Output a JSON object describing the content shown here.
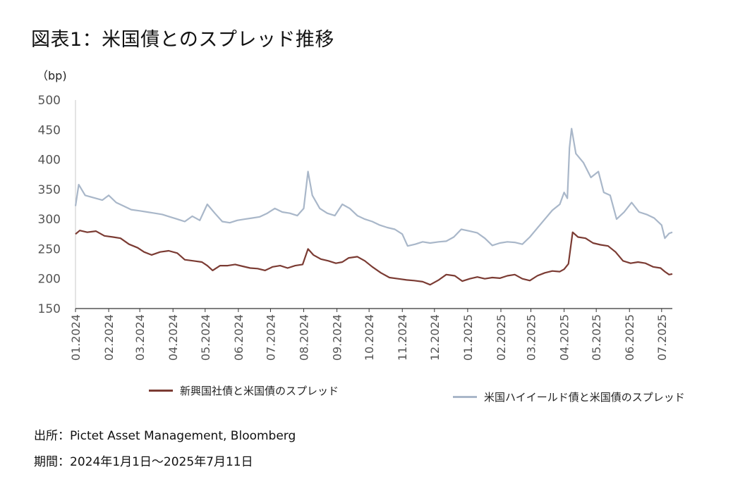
{
  "title": "図表1：米国債とのスプレッド推移",
  "unit_label": "（bp)",
  "footer": {
    "source": "出所：Pictet Asset Management, Bloomberg",
    "period": "期間：2024年1月1日～2025年7月11日"
  },
  "colors": {
    "em": "#7b3b33",
    "hy": "#a9b7c9",
    "axis": "#555555"
  },
  "chart_data": {
    "type": "line",
    "ylabel": "（bp)",
    "ylim": [
      150,
      500
    ],
    "yticks": [
      150,
      200,
      250,
      300,
      350,
      400,
      450,
      500
    ],
    "grid": false,
    "legend_position": "bottom",
    "x_start": "2024-01-01",
    "x_end": "2025-07-11",
    "xtick_labels": [
      {
        "date": "2024-01-01",
        "label": "01.2024"
      },
      {
        "date": "2024-02-01",
        "label": "02.2024"
      },
      {
        "date": "2024-03-01",
        "label": "03.2024"
      },
      {
        "date": "2024-04-01",
        "label": "04.2024"
      },
      {
        "date": "2024-05-01",
        "label": "05.2024"
      },
      {
        "date": "2024-06-01",
        "label": "06.2024"
      },
      {
        "date": "2024-07-01",
        "label": "07.2024"
      },
      {
        "date": "2024-08-01",
        "label": "08.2024"
      },
      {
        "date": "2024-09-01",
        "label": "09.2024"
      },
      {
        "date": "2024-10-01",
        "label": "10.2024"
      },
      {
        "date": "2024-11-01",
        "label": "11.2024"
      },
      {
        "date": "2024-12-01",
        "label": "12.2024"
      },
      {
        "date": "2025-01-01",
        "label": "01.2025"
      },
      {
        "date": "2025-02-01",
        "label": "02.2025"
      },
      {
        "date": "2025-03-01",
        "label": "03.2025"
      },
      {
        "date": "2025-04-01",
        "label": "04.2025"
      },
      {
        "date": "2025-05-01",
        "label": "05.2025"
      },
      {
        "date": "2025-06-01",
        "label": "06.2025"
      },
      {
        "date": "2025-07-01",
        "label": "07.2025"
      }
    ],
    "series": [
      {
        "name": "新興国社債と米国債のスプレッド",
        "color": "#7b3b33",
        "points": [
          [
            "2024-01-01",
            275
          ],
          [
            "2024-01-05",
            281
          ],
          [
            "2024-01-12",
            278
          ],
          [
            "2024-01-20",
            280
          ],
          [
            "2024-01-28",
            272
          ],
          [
            "2024-02-05",
            270
          ],
          [
            "2024-02-12",
            268
          ],
          [
            "2024-02-20",
            258
          ],
          [
            "2024-02-28",
            252
          ],
          [
            "2024-03-05",
            245
          ],
          [
            "2024-03-12",
            240
          ],
          [
            "2024-03-20",
            245
          ],
          [
            "2024-03-28",
            247
          ],
          [
            "2024-04-05",
            243
          ],
          [
            "2024-04-12",
            232
          ],
          [
            "2024-04-20",
            230
          ],
          [
            "2024-04-28",
            228
          ],
          [
            "2024-05-03",
            222
          ],
          [
            "2024-05-08",
            214
          ],
          [
            "2024-05-15",
            222
          ],
          [
            "2024-05-22",
            222
          ],
          [
            "2024-05-29",
            224
          ],
          [
            "2024-06-05",
            221
          ],
          [
            "2024-06-12",
            218
          ],
          [
            "2024-06-19",
            217
          ],
          [
            "2024-06-26",
            214
          ],
          [
            "2024-07-03",
            220
          ],
          [
            "2024-07-10",
            222
          ],
          [
            "2024-07-17",
            218
          ],
          [
            "2024-07-24",
            222
          ],
          [
            "2024-07-31",
            224
          ],
          [
            "2024-08-05",
            250
          ],
          [
            "2024-08-10",
            240
          ],
          [
            "2024-08-17",
            233
          ],
          [
            "2024-08-24",
            230
          ],
          [
            "2024-08-31",
            226
          ],
          [
            "2024-09-06",
            228
          ],
          [
            "2024-09-12",
            235
          ],
          [
            "2024-09-20",
            237
          ],
          [
            "2024-09-27",
            230
          ],
          [
            "2024-10-04",
            220
          ],
          [
            "2024-10-12",
            210
          ],
          [
            "2024-10-20",
            202
          ],
          [
            "2024-10-28",
            200
          ],
          [
            "2024-11-05",
            198
          ],
          [
            "2024-11-12",
            197
          ],
          [
            "2024-11-20",
            195
          ],
          [
            "2024-11-27",
            190
          ],
          [
            "2024-12-05",
            198
          ],
          [
            "2024-12-12",
            207
          ],
          [
            "2024-12-20",
            205
          ],
          [
            "2024-12-27",
            196
          ],
          [
            "2025-01-03",
            200
          ],
          [
            "2025-01-10",
            203
          ],
          [
            "2025-01-17",
            200
          ],
          [
            "2025-01-24",
            202
          ],
          [
            "2025-01-31",
            201
          ],
          [
            "2025-02-07",
            205
          ],
          [
            "2025-02-14",
            207
          ],
          [
            "2025-02-21",
            200
          ],
          [
            "2025-02-28",
            197
          ],
          [
            "2025-03-07",
            205
          ],
          [
            "2025-03-14",
            210
          ],
          [
            "2025-03-21",
            213
          ],
          [
            "2025-03-28",
            212
          ],
          [
            "2025-04-01",
            216
          ],
          [
            "2025-04-05",
            225
          ],
          [
            "2025-04-09",
            278
          ],
          [
            "2025-04-14",
            270
          ],
          [
            "2025-04-21",
            268
          ],
          [
            "2025-04-28",
            260
          ],
          [
            "2025-05-05",
            257
          ],
          [
            "2025-05-12",
            255
          ],
          [
            "2025-05-19",
            245
          ],
          [
            "2025-05-26",
            230
          ],
          [
            "2025-06-02",
            226
          ],
          [
            "2025-06-09",
            228
          ],
          [
            "2025-06-16",
            226
          ],
          [
            "2025-06-23",
            220
          ],
          [
            "2025-06-30",
            218
          ],
          [
            "2025-07-04",
            212
          ],
          [
            "2025-07-08",
            207
          ],
          [
            "2025-07-11",
            208
          ]
        ]
      },
      {
        "name": "米国ハイイールド債と米国債のスプレッド",
        "color": "#a9b7c9",
        "points": [
          [
            "2024-01-01",
            322
          ],
          [
            "2024-01-04",
            358
          ],
          [
            "2024-01-10",
            340
          ],
          [
            "2024-01-18",
            336
          ],
          [
            "2024-01-26",
            332
          ],
          [
            "2024-02-01",
            340
          ],
          [
            "2024-02-08",
            328
          ],
          [
            "2024-02-15",
            322
          ],
          [
            "2024-02-22",
            316
          ],
          [
            "2024-03-01",
            314
          ],
          [
            "2024-03-08",
            312
          ],
          [
            "2024-03-15",
            310
          ],
          [
            "2024-03-22",
            308
          ],
          [
            "2024-03-29",
            304
          ],
          [
            "2024-04-05",
            300
          ],
          [
            "2024-04-12",
            296
          ],
          [
            "2024-04-19",
            305
          ],
          [
            "2024-04-26",
            298
          ],
          [
            "2024-05-03",
            325
          ],
          [
            "2024-05-10",
            310
          ],
          [
            "2024-05-17",
            296
          ],
          [
            "2024-05-24",
            294
          ],
          [
            "2024-05-31",
            298
          ],
          [
            "2024-06-07",
            300
          ],
          [
            "2024-06-14",
            302
          ],
          [
            "2024-06-21",
            304
          ],
          [
            "2024-06-28",
            310
          ],
          [
            "2024-07-05",
            318
          ],
          [
            "2024-07-12",
            312
          ],
          [
            "2024-07-19",
            310
          ],
          [
            "2024-07-26",
            306
          ],
          [
            "2024-08-01",
            318
          ],
          [
            "2024-08-05",
            380
          ],
          [
            "2024-08-09",
            340
          ],
          [
            "2024-08-16",
            318
          ],
          [
            "2024-08-23",
            310
          ],
          [
            "2024-08-30",
            306
          ],
          [
            "2024-09-06",
            325
          ],
          [
            "2024-09-13",
            318
          ],
          [
            "2024-09-20",
            306
          ],
          [
            "2024-09-27",
            300
          ],
          [
            "2024-10-04",
            296
          ],
          [
            "2024-10-11",
            290
          ],
          [
            "2024-10-18",
            286
          ],
          [
            "2024-10-25",
            283
          ],
          [
            "2024-11-01",
            275
          ],
          [
            "2024-11-06",
            255
          ],
          [
            "2024-11-13",
            258
          ],
          [
            "2024-11-20",
            262
          ],
          [
            "2024-11-27",
            260
          ],
          [
            "2024-12-05",
            262
          ],
          [
            "2024-12-12",
            263
          ],
          [
            "2024-12-19",
            270
          ],
          [
            "2024-12-26",
            283
          ],
          [
            "2025-01-03",
            280
          ],
          [
            "2025-01-10",
            277
          ],
          [
            "2025-01-17",
            268
          ],
          [
            "2025-01-24",
            256
          ],
          [
            "2025-01-31",
            260
          ],
          [
            "2025-02-07",
            262
          ],
          [
            "2025-02-14",
            261
          ],
          [
            "2025-02-21",
            258
          ],
          [
            "2025-02-28",
            270
          ],
          [
            "2025-03-07",
            285
          ],
          [
            "2025-03-14",
            300
          ],
          [
            "2025-03-21",
            315
          ],
          [
            "2025-03-28",
            325
          ],
          [
            "2025-04-01",
            345
          ],
          [
            "2025-04-04",
            335
          ],
          [
            "2025-04-06",
            420
          ],
          [
            "2025-04-08",
            452
          ],
          [
            "2025-04-12",
            410
          ],
          [
            "2025-04-19",
            395
          ],
          [
            "2025-04-26",
            370
          ],
          [
            "2025-05-03",
            380
          ],
          [
            "2025-05-08",
            345
          ],
          [
            "2025-05-14",
            340
          ],
          [
            "2025-05-20",
            300
          ],
          [
            "2025-05-27",
            312
          ],
          [
            "2025-06-03",
            328
          ],
          [
            "2025-06-10",
            312
          ],
          [
            "2025-06-17",
            308
          ],
          [
            "2025-06-24",
            302
          ],
          [
            "2025-07-01",
            290
          ],
          [
            "2025-07-04",
            268
          ],
          [
            "2025-07-08",
            276
          ],
          [
            "2025-07-11",
            278
          ]
        ]
      }
    ]
  }
}
